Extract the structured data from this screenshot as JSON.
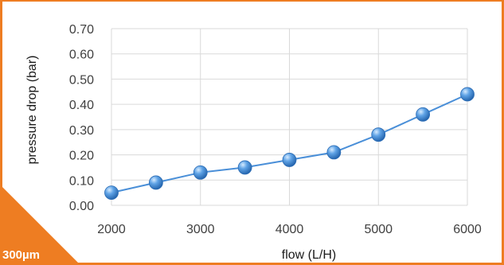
{
  "badge": {
    "label": "300µm",
    "color": "#ee7d22"
  },
  "chart_data": {
    "type": "line",
    "title": "",
    "xlabel": "flow (L/H)",
    "ylabel": "pressure drop (bar)",
    "xlim": [
      2000,
      6000
    ],
    "ylim": [
      0,
      0.7
    ],
    "xticks": [
      "2000",
      "3000",
      "4000",
      "5000",
      "6000"
    ],
    "yticks": [
      "0.00",
      "0.10",
      "0.20",
      "0.30",
      "0.40",
      "0.50",
      "0.60",
      "0.70"
    ],
    "grid": true,
    "legend": "none",
    "series": [
      {
        "color": "#4a8fd8",
        "x": [
          2000,
          2500,
          3000,
          3500,
          4000,
          4500,
          5000,
          5500,
          6000
        ],
        "y": [
          0.05,
          0.09,
          0.13,
          0.15,
          0.18,
          0.21,
          0.28,
          0.36,
          0.44
        ]
      }
    ]
  }
}
